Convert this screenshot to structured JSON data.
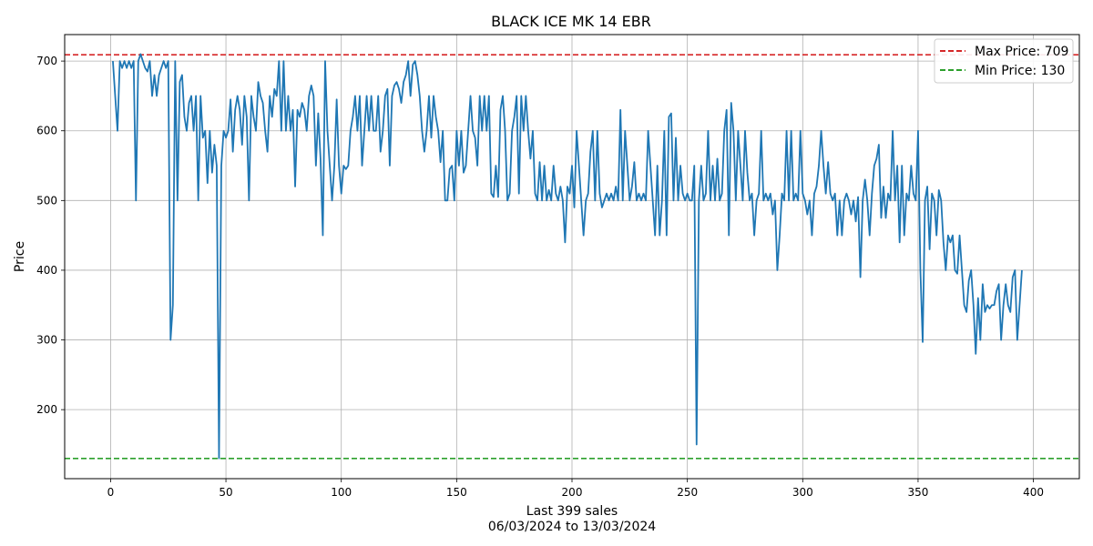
{
  "chart_data": {
    "type": "line",
    "title": "BLACK ICE MK 14 EBR",
    "xlabel": "Last 399 sales",
    "xlabel_sub": "06/03/2024 to 13/03/2024",
    "ylabel": "Price",
    "xlim": [
      -19.9,
      419.9
    ],
    "ylim": [
      101,
      738
    ],
    "grid": true,
    "legend_position": "top-right",
    "x_ticks": [
      0,
      50,
      100,
      150,
      200,
      250,
      300,
      350,
      400
    ],
    "y_ticks": [
      200,
      300,
      400,
      500,
      600,
      700
    ],
    "reference_lines": [
      {
        "name": "Max Price: 709",
        "value": 709,
        "color": "#d62728"
      },
      {
        "name": "Min Price: 130",
        "value": 130,
        "color": "#2ca02c"
      }
    ],
    "series": [
      {
        "color": "#1f77b4",
        "values": [
          700,
          650,
          600,
          700,
          690,
          700,
          690,
          700,
          690,
          700,
          500,
          700,
          710,
          700,
          690,
          685,
          700,
          650,
          680,
          650,
          680,
          690,
          700,
          690,
          700,
          300,
          350,
          700,
          500,
          670,
          680,
          620,
          600,
          640,
          650,
          600,
          650,
          500,
          650,
          590,
          600,
          525,
          600,
          540,
          580,
          550,
          130,
          550,
          600,
          590,
          600,
          645,
          570,
          630,
          650,
          630,
          580,
          650,
          620,
          500,
          650,
          620,
          600,
          670,
          650,
          640,
          600,
          570,
          650,
          620,
          660,
          650,
          700,
          600,
          700,
          600,
          650,
          600,
          630,
          520,
          630,
          620,
          640,
          630,
          600,
          650,
          665,
          650,
          550,
          625,
          560,
          450,
          700,
          600,
          550,
          500,
          550,
          645,
          550,
          510,
          550,
          545,
          550,
          600,
          620,
          650,
          600,
          650,
          550,
          600,
          650,
          600,
          650,
          600,
          600,
          650,
          570,
          600,
          650,
          660,
          550,
          650,
          665,
          670,
          660,
          640,
          670,
          680,
          700,
          650,
          695,
          700,
          680,
          650,
          600,
          570,
          600,
          650,
          590,
          650,
          620,
          600,
          555,
          600,
          500,
          500,
          545,
          550,
          500,
          600,
          550,
          600,
          540,
          550,
          600,
          650,
          600,
          590,
          550,
          650,
          600,
          650,
          600,
          650,
          510,
          505,
          550,
          505,
          630,
          650,
          600,
          500,
          510,
          600,
          620,
          650,
          510,
          650,
          600,
          650,
          600,
          560,
          600,
          510,
          500,
          555,
          500,
          550,
          500,
          515,
          500,
          550,
          510,
          500,
          520,
          500,
          440,
          520,
          510,
          550,
          490,
          600,
          550,
          500,
          450,
          500,
          510,
          570,
          600,
          500,
          600,
          510,
          490,
          500,
          510,
          500,
          510,
          500,
          520,
          500,
          630,
          500,
          600,
          550,
          500,
          520,
          555,
          500,
          510,
          500,
          510,
          500,
          600,
          550,
          500,
          450,
          550,
          450,
          500,
          600,
          450,
          620,
          625,
          500,
          590,
          500,
          550,
          510,
          500,
          510,
          500,
          500,
          550,
          150,
          500,
          550,
          500,
          510,
          600,
          500,
          550,
          500,
          560,
          500,
          510,
          600,
          630,
          450,
          640,
          600,
          500,
          600,
          550,
          500,
          600,
          540,
          500,
          510,
          450,
          500,
          510,
          600,
          500,
          510,
          500,
          510,
          480,
          500,
          400,
          450,
          510,
          500,
          600,
          500,
          600,
          500,
          510,
          500,
          600,
          510,
          500,
          480,
          500,
          450,
          510,
          520,
          550,
          600,
          550,
          510,
          555,
          510,
          500,
          510,
          450,
          500,
          450,
          500,
          510,
          500,
          480,
          500,
          470,
          505,
          390,
          500,
          530,
          500,
          450,
          510,
          550,
          560,
          580,
          475,
          520,
          475,
          510,
          500,
          600,
          500,
          550,
          440,
          550,
          450,
          510,
          500,
          550,
          510,
          500,
          600,
          400,
          297,
          500,
          520,
          430,
          510,
          500,
          450,
          515,
          500,
          440,
          400,
          450,
          440,
          450,
          400,
          395,
          450,
          400,
          350,
          340,
          385,
          400,
          350,
          280,
          360,
          300,
          380,
          340,
          350,
          345,
          350,
          350,
          370,
          380,
          300,
          350,
          380,
          350,
          340,
          390,
          400,
          300,
          350,
          400
        ]
      }
    ]
  }
}
